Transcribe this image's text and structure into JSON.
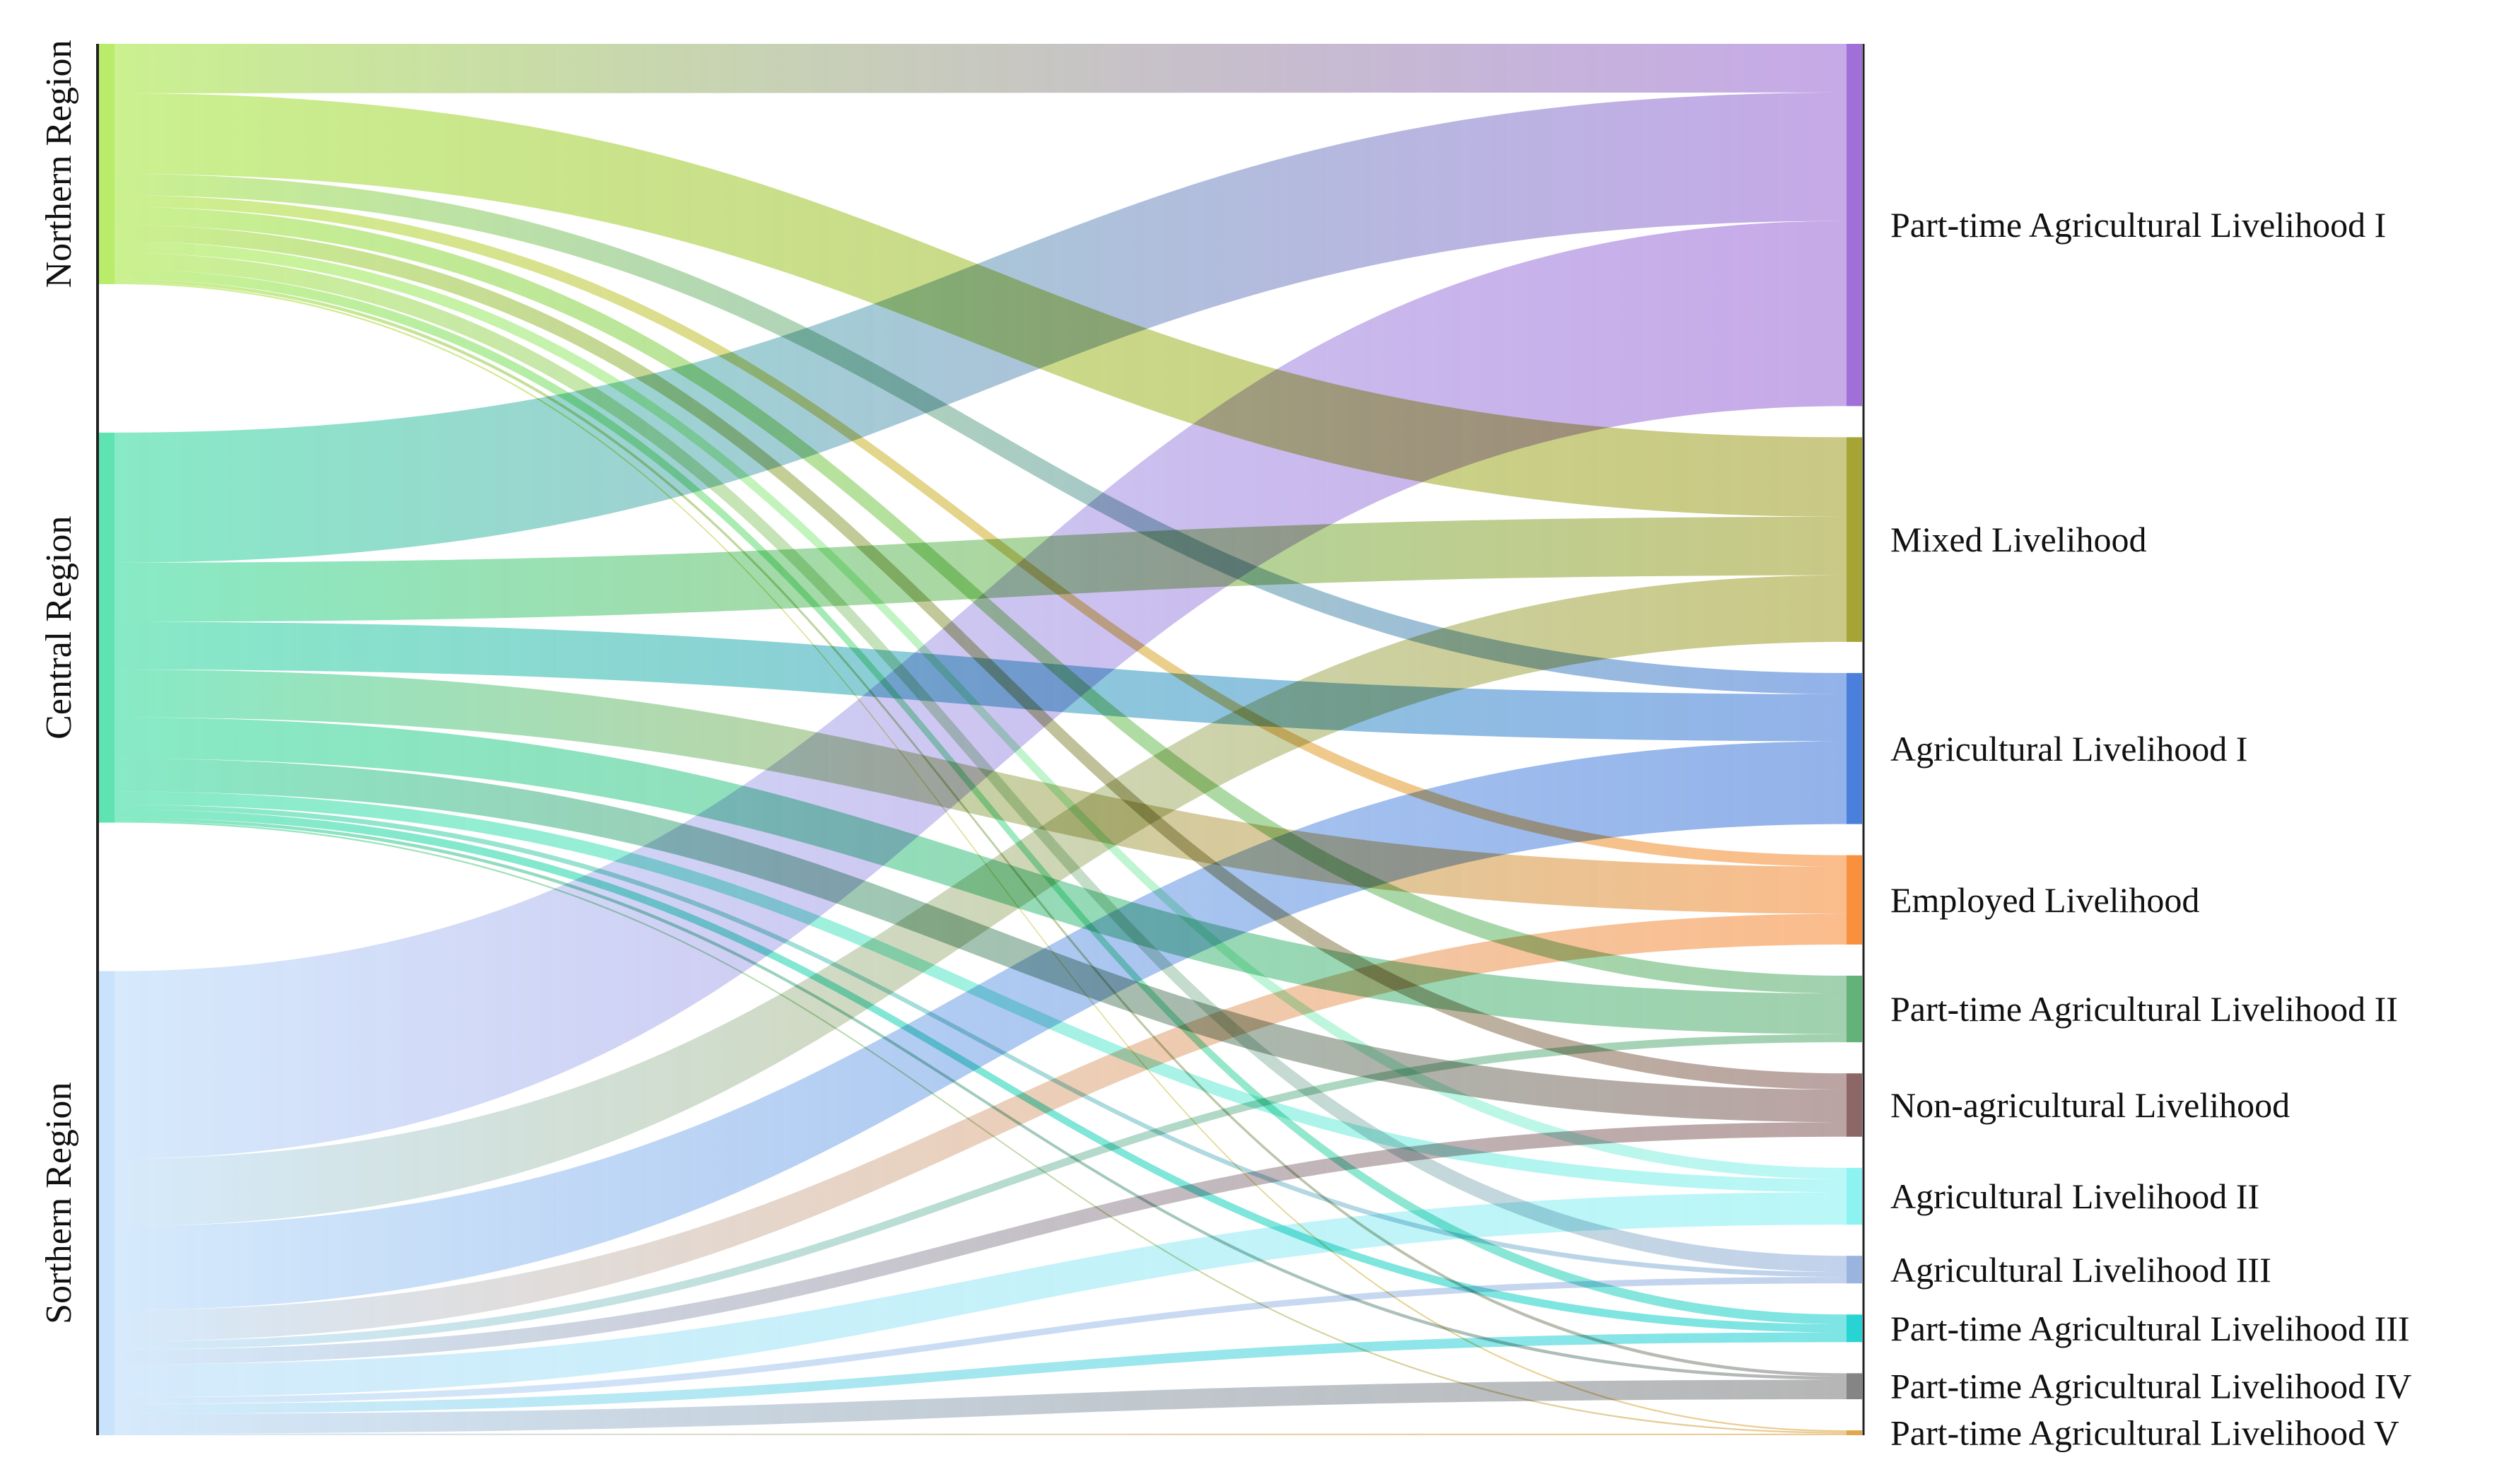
{
  "chart_data": {
    "type": "sankey",
    "title": "",
    "sources": [
      {
        "name": "Northern Region",
        "color": "#b9ec6a"
      },
      {
        "name": "Central Region",
        "color": "#5fe3b3"
      },
      {
        "name": "Sorthern Region",
        "color": "#c8e3fb"
      }
    ],
    "targets": [
      {
        "name": "Part-time Agricultural Livelihood I",
        "color": "#a070d8"
      },
      {
        "name": "Mixed Livelihood",
        "color": "#a6a434"
      },
      {
        "name": "Agricultural Livelihood I",
        "color": "#4a7fdb"
      },
      {
        "name": "Employed Livelihood",
        "color": "#f8903e"
      },
      {
        "name": "Part-time Agricultural Livelihood II",
        "color": "#62b279"
      },
      {
        "name": "Non-agricultural Livelihood",
        "color": "#8d6765"
      },
      {
        "name": "Agricultural Livelihood II",
        "color": "#8cf2f2"
      },
      {
        "name": "Agricultural Livelihood III",
        "color": "#9ab4e0"
      },
      {
        "name": "Part-time Agricultural Livelihood III",
        "color": "#27d3d3"
      },
      {
        "name": "Part-time Agricultural Livelihood IV",
        "color": "#858585"
      },
      {
        "name": "Part-time Agricultural Livelihood V",
        "color": "#e0a84a"
      }
    ],
    "links": [
      {
        "source": "Northern Region",
        "target": "Part-time Agricultural Livelihood I",
        "value": 30
      },
      {
        "source": "Northern Region",
        "target": "Mixed Livelihood",
        "value": 49
      },
      {
        "source": "Northern Region",
        "target": "Agricultural Livelihood I",
        "value": 13
      },
      {
        "source": "Northern Region",
        "target": "Employed Livelihood",
        "value": 7
      },
      {
        "source": "Northern Region",
        "target": "Part-time Agricultural Livelihood II",
        "value": 11
      },
      {
        "source": "Northern Region",
        "target": "Non-agricultural Livelihood",
        "value": 10
      },
      {
        "source": "Northern Region",
        "target": "Agricultural Livelihood II",
        "value": 7
      },
      {
        "source": "Northern Region",
        "target": "Agricultural Livelihood III",
        "value": 10
      },
      {
        "source": "Northern Region",
        "target": "Part-time Agricultural Livelihood III",
        "value": 6
      },
      {
        "source": "Northern Region",
        "target": "Part-time Agricultural Livelihood IV",
        "value": 2
      },
      {
        "source": "Northern Region",
        "target": "Part-time Agricultural Livelihood V",
        "value": 1
      },
      {
        "source": "Central Region",
        "target": "Part-time Agricultural Livelihood I",
        "value": 79
      },
      {
        "source": "Central Region",
        "target": "Mixed Livelihood",
        "value": 36
      },
      {
        "source": "Central Region",
        "target": "Agricultural Livelihood I",
        "value": 29
      },
      {
        "source": "Central Region",
        "target": "Employed Livelihood",
        "value": 29
      },
      {
        "source": "Central Region",
        "target": "Part-time Agricultural Livelihood II",
        "value": 25
      },
      {
        "source": "Central Region",
        "target": "Non-agricultural Livelihood",
        "value": 20
      },
      {
        "source": "Central Region",
        "target": "Agricultural Livelihood II",
        "value": 8
      },
      {
        "source": "Central Region",
        "target": "Agricultural Livelihood III",
        "value": 3
      },
      {
        "source": "Central Region",
        "target": "Part-time Agricultural Livelihood III",
        "value": 5
      },
      {
        "source": "Central Region",
        "target": "Part-time Agricultural Livelihood IV",
        "value": 2
      },
      {
        "source": "Central Region",
        "target": "Part-time Agricultural Livelihood V",
        "value": 1
      },
      {
        "source": "Sorthern Region",
        "target": "Part-time Agricultural Livelihood I",
        "value": 114
      },
      {
        "source": "Sorthern Region",
        "target": "Mixed Livelihood",
        "value": 41
      },
      {
        "source": "Sorthern Region",
        "target": "Agricultural Livelihood I",
        "value": 51
      },
      {
        "source": "Sorthern Region",
        "target": "Employed Livelihood",
        "value": 19
      },
      {
        "source": "Sorthern Region",
        "target": "Part-time Agricultural Livelihood II",
        "value": 5
      },
      {
        "source": "Sorthern Region",
        "target": "Non-agricultural Livelihood",
        "value": 9
      },
      {
        "source": "Sorthern Region",
        "target": "Agricultural Livelihood II",
        "value": 20
      },
      {
        "source": "Sorthern Region",
        "target": "Agricultural Livelihood III",
        "value": 4
      },
      {
        "source": "Sorthern Region",
        "target": "Part-time Agricultural Livelihood III",
        "value": 6
      },
      {
        "source": "Sorthern Region",
        "target": "Part-time Agricultural Livelihood IV",
        "value": 12
      },
      {
        "source": "Sorthern Region",
        "target": "Part-time Agricultural Livelihood V",
        "value": 1
      }
    ]
  }
}
